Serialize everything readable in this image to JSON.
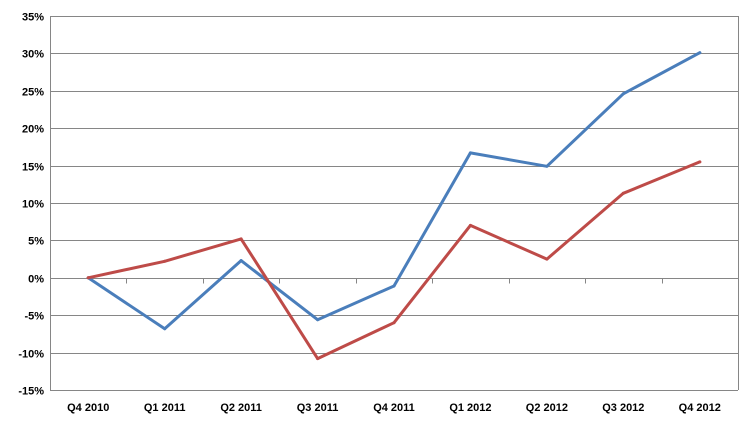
{
  "chart_data": {
    "type": "line",
    "title": "",
    "xlabel": "",
    "ylabel": "",
    "categories": [
      "Q4 2010",
      "Q1 2011",
      "Q2 2011",
      "Q3 2011",
      "Q4 2011",
      "Q1 2012",
      "Q2 2012",
      "Q3 2012",
      "Q4 2012"
    ],
    "ylim": [
      -15,
      35
    ],
    "yticks": [
      35,
      30,
      25,
      20,
      15,
      10,
      5,
      0,
      -5,
      -10,
      -15
    ],
    "ytick_labels": [
      "35%",
      "30%",
      "25%",
      "20%",
      "15%",
      "10%",
      "5%",
      "0%",
      "-5%",
      "-10%",
      "-15%"
    ],
    "y_unit": "percent",
    "grid": "horizontal",
    "legend": "none",
    "series": [
      {
        "color": "#4a7ebb",
        "values": [
          0,
          -6.8,
          2.3,
          -5.6,
          -1.1,
          16.7,
          14.9,
          24.6,
          30.1
        ]
      },
      {
        "color": "#be4b48",
        "values": [
          0,
          2.2,
          5.2,
          -10.8,
          -6.0,
          7.0,
          2.5,
          11.3,
          15.5
        ]
      }
    ],
    "colors": {
      "gridline": "#868686",
      "axis": "#868686",
      "text": "#000000"
    }
  }
}
